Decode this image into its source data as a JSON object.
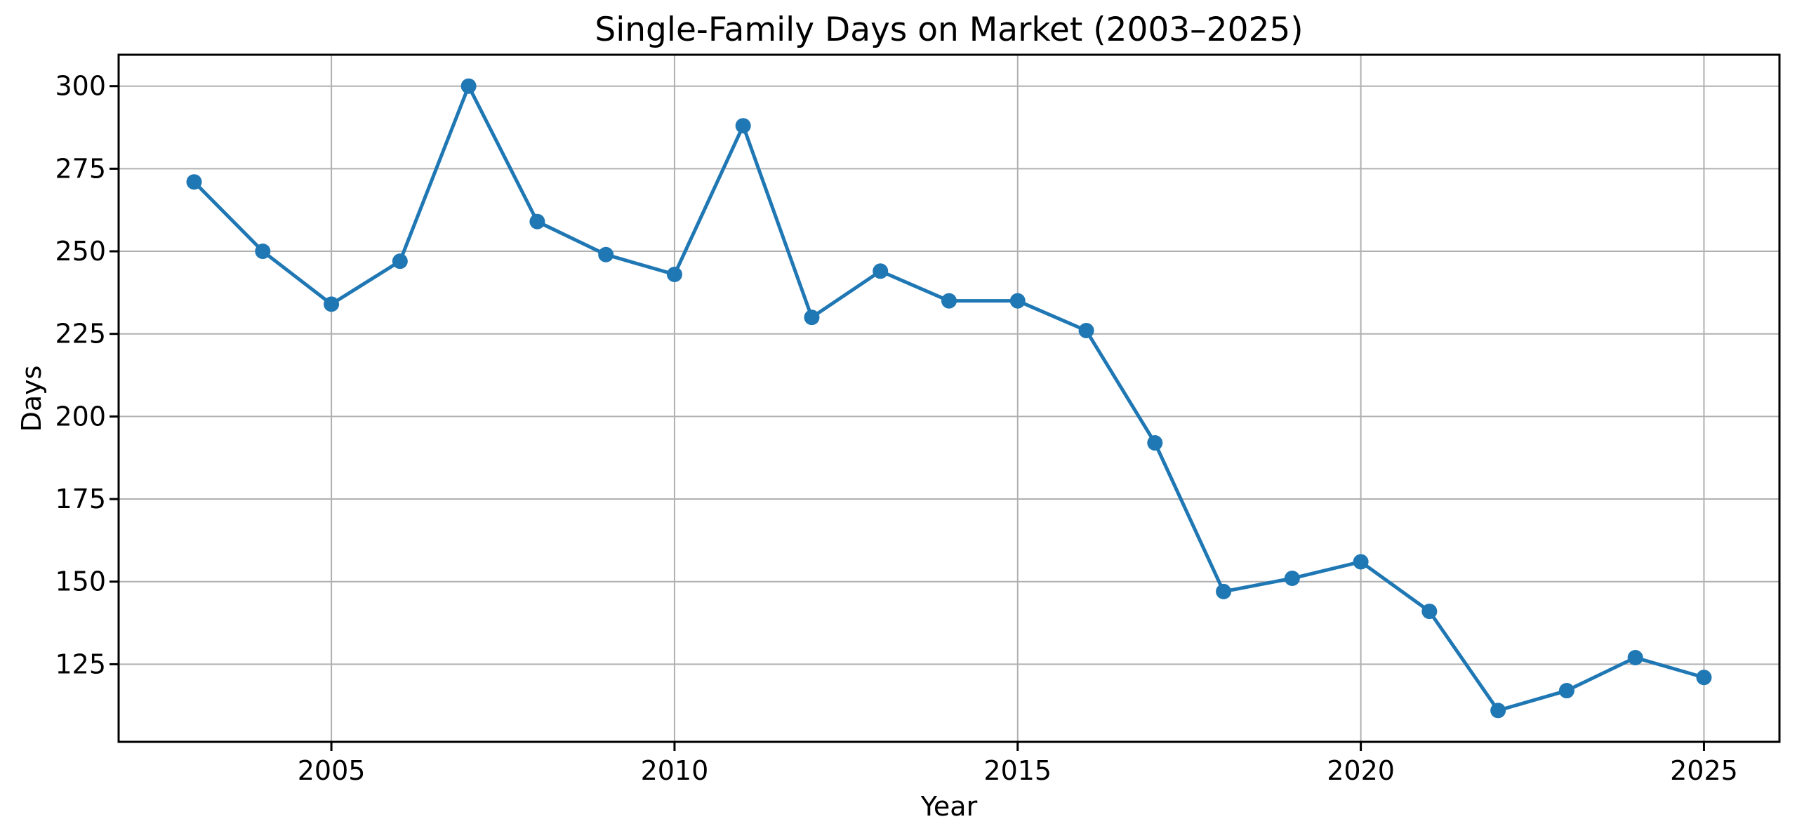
{
  "chart_data": {
    "type": "line",
    "title": "Single-Family Days on Market (2003–2025)",
    "xlabel": "Year",
    "ylabel": "Days",
    "x": [
      2003,
      2004,
      2005,
      2006,
      2007,
      2008,
      2009,
      2010,
      2011,
      2012,
      2013,
      2014,
      2015,
      2016,
      2017,
      2018,
      2019,
      2020,
      2021,
      2022,
      2023,
      2024,
      2025
    ],
    "values": [
      271,
      250,
      234,
      247,
      300,
      259,
      249,
      243,
      288,
      230,
      244,
      235,
      235,
      226,
      192,
      147,
      151,
      156,
      141,
      111,
      117,
      127,
      121
    ],
    "series_name": "Single-Family Days on Market",
    "xticks": [
      2005,
      2010,
      2015,
      2020,
      2025
    ],
    "yticks": [
      125,
      150,
      175,
      200,
      225,
      250,
      275,
      300
    ],
    "xlim": [
      2001.9,
      2026.1
    ],
    "ylim": [
      101.5,
      309.5
    ],
    "grid": true,
    "legend": false,
    "line_color": "#1f77b4",
    "marker_color": "#1f77b4",
    "grid_color": "#b0b0b0",
    "marker": "circle"
  }
}
